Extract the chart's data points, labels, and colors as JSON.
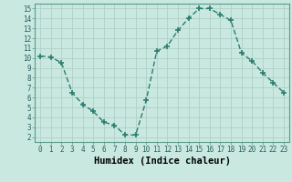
{
  "x": [
    0,
    1,
    2,
    3,
    4,
    5,
    6,
    7,
    8,
    9,
    10,
    11,
    12,
    13,
    14,
    15,
    16,
    17,
    18,
    19,
    20,
    21,
    22,
    23
  ],
  "y": [
    10.2,
    10.1,
    9.5,
    6.5,
    5.3,
    4.6,
    3.5,
    3.2,
    2.2,
    2.2,
    5.7,
    10.7,
    11.2,
    12.8,
    14.0,
    15.0,
    15.0,
    14.4,
    13.8,
    10.5,
    9.7,
    8.5,
    7.5,
    6.5
  ],
  "line_color": "#2e7d6e",
  "marker": "+",
  "marker_size": 4,
  "marker_lw": 1.2,
  "bg_color": "#c8e8e0",
  "grid_color": "#b0d0c8",
  "xlabel": "Humidex (Indice chaleur)",
  "xlim": [
    -0.5,
    23.5
  ],
  "ylim": [
    1.5,
    15.5
  ],
  "yticks": [
    2,
    3,
    4,
    5,
    6,
    7,
    8,
    9,
    10,
    11,
    12,
    13,
    14,
    15
  ],
  "xticks": [
    0,
    1,
    2,
    3,
    4,
    5,
    6,
    7,
    8,
    9,
    10,
    11,
    12,
    13,
    14,
    15,
    16,
    17,
    18,
    19,
    20,
    21,
    22,
    23
  ],
  "tick_fontsize": 5.5,
  "xlabel_fontsize": 7.5,
  "linewidth": 1.0,
  "line_dash": [
    4,
    2
  ]
}
